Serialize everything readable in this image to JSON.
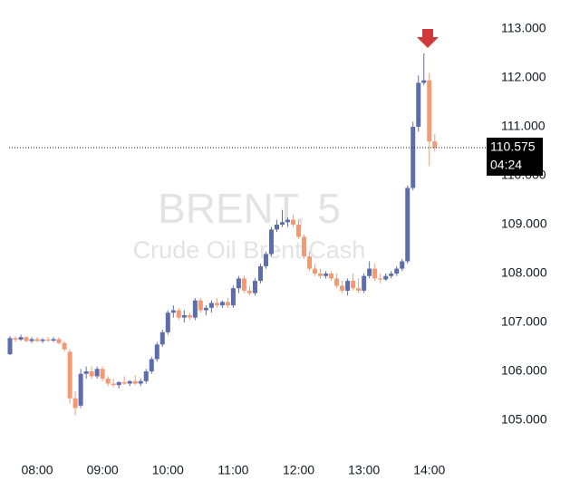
{
  "chart_data": {
    "type": "candlestick",
    "title": "BRENT, 5",
    "subtitle": "Crude Oil Brent Cash",
    "up_color": "#5d6cad",
    "down_color": "#f39a73",
    "x": [
      "07:35",
      "07:40",
      "07:45",
      "07:50",
      "07:55",
      "08:00",
      "08:05",
      "08:10",
      "08:15",
      "08:20",
      "08:25",
      "08:30",
      "08:35",
      "08:40",
      "08:45",
      "08:50",
      "08:55",
      "09:00",
      "09:05",
      "09:10",
      "09:15",
      "09:20",
      "09:25",
      "09:30",
      "09:35",
      "09:40",
      "09:45",
      "09:50",
      "09:55",
      "10:00",
      "10:05",
      "10:10",
      "10:15",
      "10:20",
      "10:25",
      "10:30",
      "10:35",
      "10:40",
      "10:45",
      "10:50",
      "10:55",
      "11:00",
      "11:05",
      "11:10",
      "11:15",
      "11:20",
      "11:25",
      "11:30",
      "11:35",
      "11:40",
      "11:45",
      "11:50",
      "11:55",
      "12:00",
      "12:05",
      "12:10",
      "12:15",
      "12:20",
      "12:25",
      "12:30",
      "12:35",
      "12:40",
      "12:45",
      "12:50",
      "12:55",
      "13:00",
      "13:05",
      "13:10",
      "13:15",
      "13:20",
      "13:25",
      "13:30",
      "13:35",
      "13:40",
      "13:45",
      "13:50",
      "13:55",
      "14:00",
      "14:05"
    ],
    "candles": [
      [
        106.35,
        106.72,
        106.33,
        106.68
      ],
      [
        106.68,
        106.72,
        106.6,
        106.65
      ],
      [
        106.65,
        106.75,
        106.62,
        106.7
      ],
      [
        106.7,
        106.72,
        106.6,
        106.62
      ],
      [
        106.62,
        106.7,
        106.58,
        106.66
      ],
      [
        106.66,
        106.7,
        106.6,
        106.62
      ],
      [
        106.62,
        106.68,
        106.58,
        106.65
      ],
      [
        106.65,
        106.7,
        106.6,
        106.63
      ],
      [
        106.63,
        106.7,
        106.6,
        106.66
      ],
      [
        106.66,
        106.7,
        106.55,
        106.58
      ],
      [
        106.58,
        106.62,
        106.4,
        106.45
      ],
      [
        106.4,
        106.45,
        105.35,
        105.45
      ],
      [
        105.45,
        105.6,
        105.1,
        105.25
      ],
      [
        105.3,
        106.05,
        105.25,
        105.95
      ],
      [
        105.95,
        106.1,
        105.85,
        106.0
      ],
      [
        106.0,
        106.1,
        105.85,
        105.9
      ],
      [
        105.9,
        106.1,
        105.85,
        106.05
      ],
      [
        106.05,
        106.1,
        105.8,
        105.85
      ],
      [
        105.85,
        105.9,
        105.7,
        105.75
      ],
      [
        105.75,
        105.85,
        105.68,
        105.72
      ],
      [
        105.72,
        105.8,
        105.65,
        105.78
      ],
      [
        105.78,
        105.9,
        105.72,
        105.75
      ],
      [
        105.75,
        105.82,
        105.7,
        105.8
      ],
      [
        105.8,
        105.92,
        105.72,
        105.75
      ],
      [
        105.75,
        105.85,
        105.7,
        105.8
      ],
      [
        105.8,
        106.05,
        105.75,
        106.0
      ],
      [
        106.0,
        106.3,
        105.95,
        106.25
      ],
      [
        106.25,
        106.6,
        106.2,
        106.55
      ],
      [
        106.55,
        106.85,
        106.5,
        106.8
      ],
      [
        106.8,
        107.25,
        106.75,
        107.2
      ],
      [
        107.2,
        107.35,
        107.1,
        107.25
      ],
      [
        107.25,
        107.3,
        107.05,
        107.1
      ],
      [
        107.1,
        107.25,
        107.0,
        107.15
      ],
      [
        107.15,
        107.2,
        107.05,
        107.1
      ],
      [
        107.1,
        107.5,
        107.05,
        107.45
      ],
      [
        107.45,
        107.5,
        107.2,
        107.25
      ],
      [
        107.25,
        107.35,
        107.15,
        107.3
      ],
      [
        107.3,
        107.45,
        107.2,
        107.4
      ],
      [
        107.4,
        107.5,
        107.3,
        107.35
      ],
      [
        107.35,
        107.45,
        107.3,
        107.42
      ],
      [
        107.42,
        107.5,
        107.3,
        107.35
      ],
      [
        107.35,
        107.75,
        107.3,
        107.7
      ],
      [
        107.7,
        107.95,
        107.6,
        107.9
      ],
      [
        107.9,
        107.95,
        107.6,
        107.65
      ],
      [
        107.65,
        107.75,
        107.55,
        107.6
      ],
      [
        107.6,
        107.9,
        107.55,
        107.85
      ],
      [
        107.85,
        108.2,
        107.8,
        108.15
      ],
      [
        108.15,
        108.45,
        108.1,
        108.4
      ],
      [
        108.4,
        108.95,
        108.35,
        108.9
      ],
      [
        108.9,
        109.1,
        108.85,
        109.0
      ],
      [
        109.0,
        109.3,
        108.95,
        109.05
      ],
      [
        109.05,
        109.15,
        108.95,
        109.1
      ],
      [
        109.1,
        109.2,
        108.95,
        109.0
      ],
      [
        109.0,
        109.1,
        108.7,
        108.75
      ],
      [
        108.75,
        108.8,
        108.3,
        108.35
      ],
      [
        108.35,
        108.45,
        108.05,
        108.1
      ],
      [
        108.1,
        108.2,
        107.95,
        108.0
      ],
      [
        108.0,
        108.1,
        107.9,
        107.95
      ],
      [
        107.95,
        108.05,
        107.9,
        108.0
      ],
      [
        108.0,
        108.05,
        107.85,
        107.9
      ],
      [
        107.9,
        108.0,
        107.7,
        107.75
      ],
      [
        107.75,
        107.85,
        107.6,
        107.65
      ],
      [
        107.65,
        107.9,
        107.55,
        107.85
      ],
      [
        107.85,
        108.0,
        107.65,
        107.7
      ],
      [
        107.7,
        107.9,
        107.6,
        107.65
      ],
      [
        107.65,
        108.0,
        107.6,
        107.95
      ],
      [
        107.95,
        108.25,
        107.9,
        108.1
      ],
      [
        108.1,
        108.2,
        107.85,
        107.9
      ],
      [
        107.9,
        108.0,
        107.8,
        107.88
      ],
      [
        107.88,
        108.0,
        107.85,
        107.95
      ],
      [
        107.95,
        108.05,
        107.9,
        108.0
      ],
      [
        108.0,
        108.15,
        107.95,
        108.1
      ],
      [
        108.1,
        108.3,
        108.05,
        108.25
      ],
      [
        108.25,
        109.8,
        108.2,
        109.75
      ],
      [
        109.75,
        111.1,
        109.7,
        111.0
      ],
      [
        111.0,
        112.05,
        110.9,
        111.9
      ],
      [
        111.9,
        112.5,
        111.85,
        111.95
      ],
      [
        111.95,
        112.1,
        110.2,
        110.7
      ],
      [
        110.7,
        110.85,
        110.5,
        110.575
      ]
    ],
    "ylim": [
      104.5,
      113.5
    ],
    "yticks": [
      {
        "value": 113,
        "label": "113.000"
      },
      {
        "value": 112,
        "label": "112.000"
      },
      {
        "value": 111,
        "label": "111.000"
      },
      {
        "value": 110,
        "label": "110.000"
      },
      {
        "value": 109,
        "label": "109.000"
      },
      {
        "value": 108,
        "label": "108.000"
      },
      {
        "value": 107,
        "label": "107.000"
      },
      {
        "value": 106,
        "label": "106.000"
      },
      {
        "value": 105,
        "label": "105.000"
      }
    ],
    "xticks": [
      "08:00",
      "09:00",
      "10:00",
      "11:00",
      "12:00",
      "13:00",
      "14:00"
    ],
    "last_price": 110.575,
    "countdown": "04:24"
  }
}
